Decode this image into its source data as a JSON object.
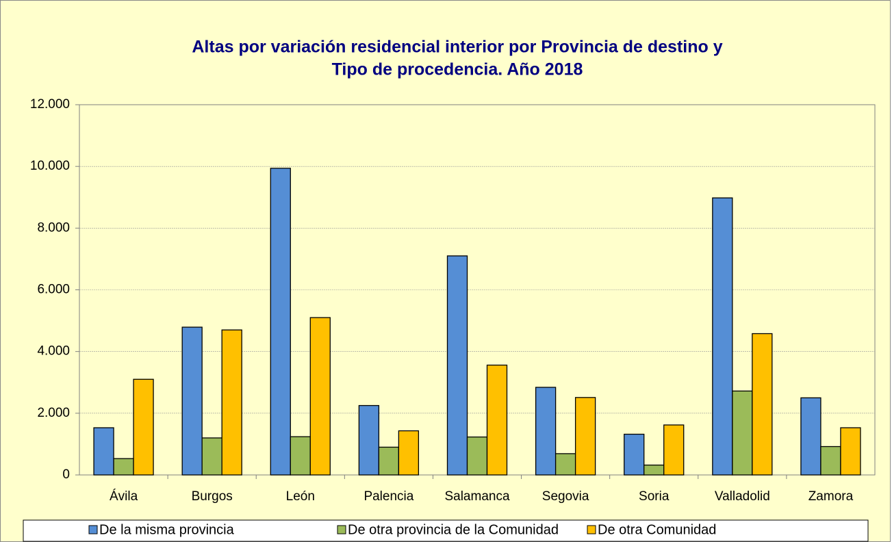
{
  "chart_data": {
    "type": "bar",
    "title": [
      "Altas por variación residencial interior por Provincia de destino y",
      "Tipo de procedencia. Año 2018"
    ],
    "categories": [
      "Ávila",
      "Burgos",
      "León",
      "Palencia",
      "Salamanca",
      "Segovia",
      "Soria",
      "Valladolid",
      "Zamora"
    ],
    "series": [
      {
        "name": "De la misma provincia",
        "color": "#558ed5",
        "values": [
          1530,
          4790,
          9940,
          2250,
          7100,
          2840,
          1320,
          8980,
          2500
        ]
      },
      {
        "name": "De otra provincia de la Comunidad",
        "color": "#9bbb59",
        "values": [
          530,
          1200,
          1240,
          900,
          1230,
          690,
          320,
          2720,
          920
        ]
      },
      {
        "name": "De otra Comunidad",
        "color": "#ffc000",
        "values": [
          3100,
          4700,
          5100,
          1430,
          3560,
          2510,
          1620,
          4580,
          1530
        ]
      }
    ],
    "ylim": [
      0,
      12000
    ],
    "yticks": [
      0,
      {
        "value": 2000,
        "label": "2.000"
      },
      {
        "value": 4000,
        "label": "4.000"
      },
      {
        "value": 6000,
        "label": "6.000"
      },
      {
        "value": 8000,
        "label": "8.000"
      },
      {
        "value": 10000,
        "label": "10.000"
      },
      {
        "value": 12000,
        "label": "12.000"
      }
    ],
    "grid": true,
    "legend": "bottom"
  }
}
